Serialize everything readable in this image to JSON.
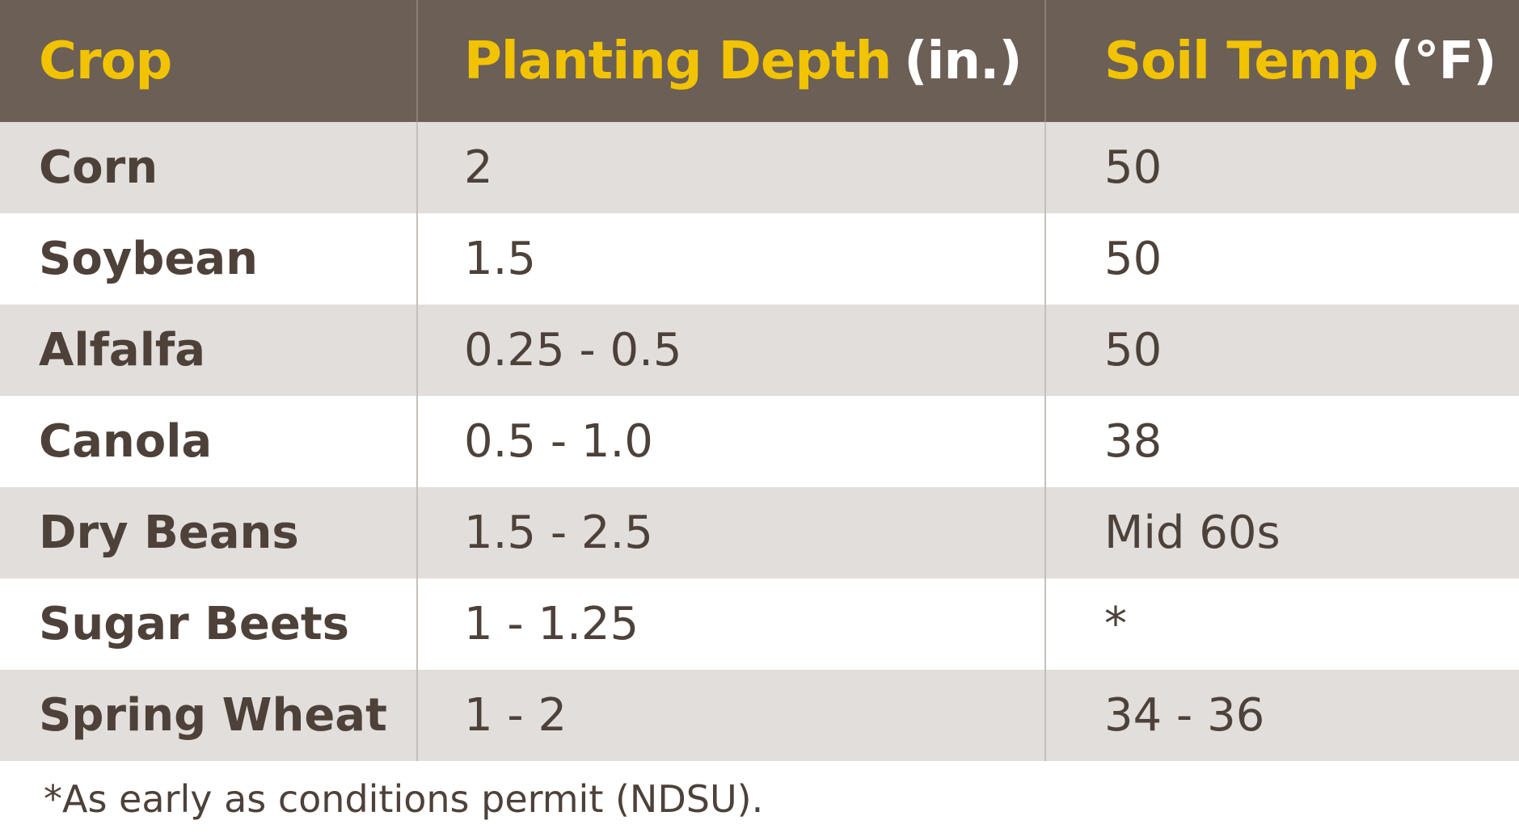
{
  "header": {
    "crop": "Crop",
    "depth": "Planting Depth",
    "depth_unit": "(in.)",
    "temp": "Soil Temp",
    "temp_unit": "(°F)"
  },
  "rows": [
    {
      "crop": "Corn",
      "depth": "2",
      "temp": "50"
    },
    {
      "crop": "Soybean",
      "depth": "1.5",
      "temp": "50"
    },
    {
      "crop": "Alfalfa",
      "depth": "0.25 - 0.5",
      "temp": "50"
    },
    {
      "crop": "Canola",
      "depth": "0.5 - 1.0",
      "temp": "38"
    },
    {
      "crop": "Dry Beans",
      "depth": "1.5 - 2.5",
      "temp": "Mid 60s"
    },
    {
      "crop": "Sugar Beets",
      "depth": "1 - 1.25",
      "temp": "*"
    },
    {
      "crop": "Spring Wheat",
      "depth": "1 - 2",
      "temp": "34 - 36"
    }
  ],
  "footnote": "*As early as conditions permit (NDSU).",
  "colors": {
    "header_bg": "#6b5f56",
    "header_text": "#f2c300",
    "unit_text": "#ffffff",
    "row_shaded": "#e1dedb",
    "row_plain": "#ffffff",
    "body_text": "#4d4139"
  }
}
